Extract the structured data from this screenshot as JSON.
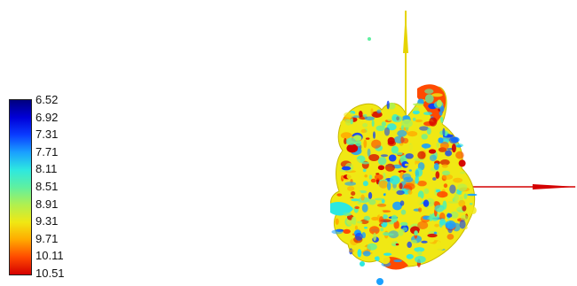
{
  "colorbar": {
    "labels": [
      "6.52",
      "6.92",
      "7.31",
      "7.71",
      "8.11",
      "8.51",
      "8.91",
      "9.31",
      "9.71",
      "10.11",
      "10.51"
    ],
    "stops": [
      "#00007f",
      "#0000d8",
      "#0a3cff",
      "#1aa0ff",
      "#2de8e0",
      "#5ff0a0",
      "#b0f050",
      "#f0e814",
      "#ffaa00",
      "#ff4a00",
      "#d40000"
    ]
  },
  "axes": {
    "vertical_axis_color": "#e6d400",
    "horizontal_axis_color": "#d40000"
  },
  "surface": {
    "palette": [
      "#1aa0ff",
      "#2de8e0",
      "#5ff0a0",
      "#b0f050",
      "#f0e814",
      "#ffaa00",
      "#ff4a00",
      "#d40000",
      "#0a3cff"
    ]
  }
}
